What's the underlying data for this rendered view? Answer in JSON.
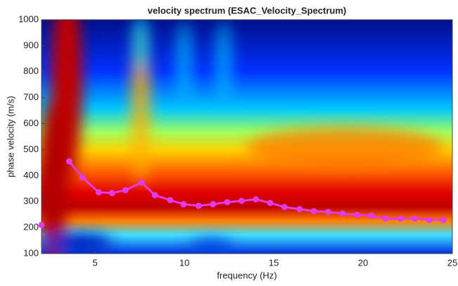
{
  "chart_data": {
    "type": "line",
    "title": "velocity spectrum (ESAC_Velocity_Spectrum)",
    "x_label": "frequency (Hz)",
    "y_label": "phase velocity (m/s)",
    "xlim": [
      2,
      25
    ],
    "ylim": [
      100,
      1000
    ],
    "xticks": [
      5,
      10,
      15,
      20,
      25
    ],
    "yticks": [
      100,
      200,
      300,
      400,
      500,
      600,
      700,
      800,
      900,
      1000
    ],
    "x": [
      2,
      2.8,
      3.55,
      4.3,
      5.2,
      5.95,
      6.7,
      7.6,
      8.35,
      9.2,
      9.95,
      10.8,
      11.6,
      12.4,
      13.2,
      14.0,
      14.8,
      15.6,
      16.45,
      17.25,
      18.05,
      18.85,
      19.65,
      20.45,
      21.25,
      22.1,
      22.9,
      23.7,
      24.5
    ],
    "series": [
      {
        "color": "#e23be2",
        "values": [
          210,
          null,
          455,
          393,
          336,
          333,
          344,
          374,
          325,
          306,
          290,
          284,
          290,
          298,
          303,
          309,
          295,
          279,
          271,
          263,
          260,
          254,
          249,
          246,
          235,
          235,
          235,
          230,
          230
        ]
      }
    ]
  }
}
